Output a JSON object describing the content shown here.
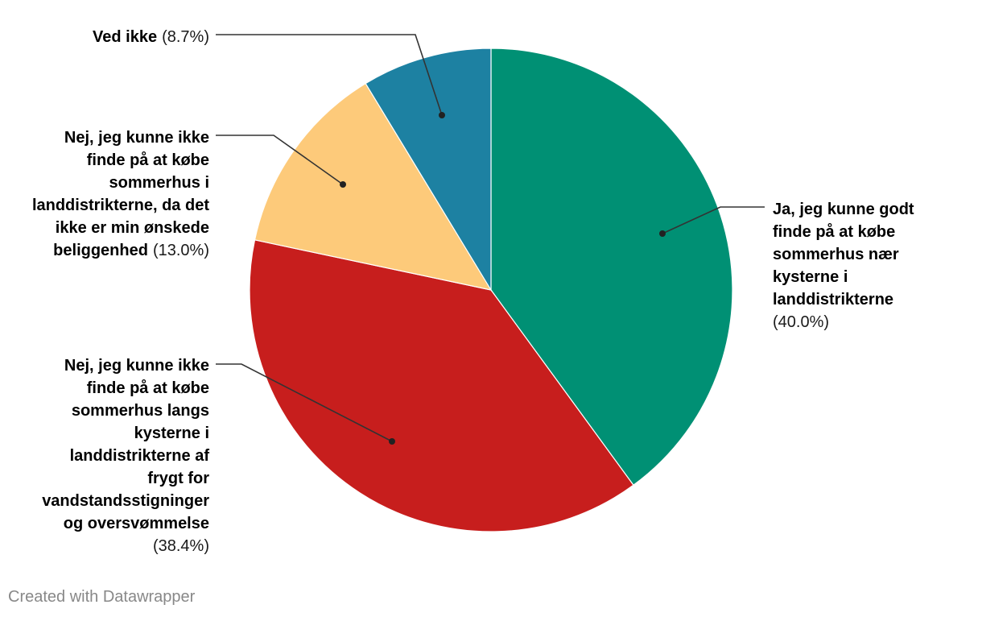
{
  "chart_data": {
    "type": "pie",
    "slices": [
      {
        "name": "Ja, jeg kunne godt finde på at købe sommerhus nær kysterne i landdistrikterne",
        "value": 40.0,
        "percent_label": "(40.0%)",
        "color": "#009074",
        "label_lines": [
          "Ja, jeg kunne godt",
          "finde på at købe",
          "sommerhus nær",
          "kysterne i",
          "landdistrikterne"
        ]
      },
      {
        "name": "Nej, jeg kunne ikke finde på at købe sommerhus langs kysterne i landdistrikterne af frygt for vandstandsstigninger og oversvømmelse",
        "value": 38.4,
        "percent_label": "(38.4%)",
        "color": "#c71e1d",
        "label_lines": [
          "Nej, jeg kunne ikke",
          "finde på at købe",
          "sommerhus langs",
          "kysterne i",
          "landdistrikterne af",
          "frygt for",
          "vandstandsstigninger",
          "og oversvømmelse"
        ]
      },
      {
        "name": "Nej, jeg kunne ikke finde på at købe sommerhus i landdistrikterne, da det ikke er min ønskede beliggenhed",
        "value": 13.0,
        "percent_label": "(13.0%)",
        "color": "#fdca7a",
        "label_lines": [
          "Nej, jeg kunne ikke",
          "finde på at købe",
          "sommerhus i",
          "landdistrikterne, da det",
          "ikke er min ønskede",
          "beliggenhed"
        ]
      },
      {
        "name": "Ved ikke",
        "value": 8.7,
        "percent_label": "(8.7%)",
        "color": "#1d81a2",
        "label_lines": [
          "Ved ikke"
        ]
      }
    ]
  },
  "footer": {
    "credit": "Created with Datawrapper"
  }
}
